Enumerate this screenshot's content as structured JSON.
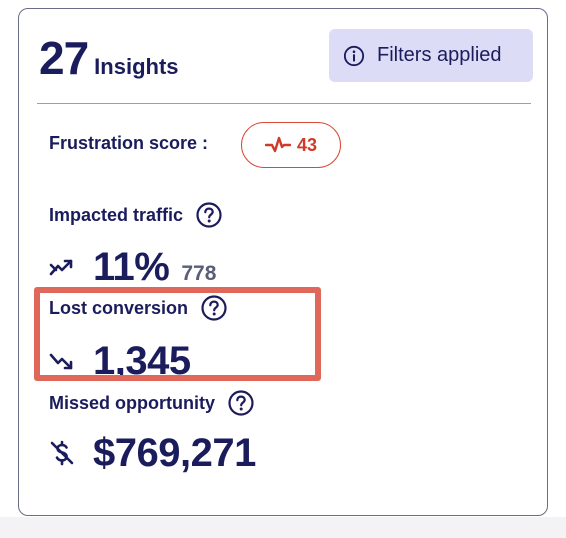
{
  "header": {
    "count": "27",
    "count_label": "Insights"
  },
  "filters": {
    "label": "Filters applied",
    "icon": "info-icon"
  },
  "frustration": {
    "label": "Frustration score :",
    "score": "43",
    "icon": "pulse-icon",
    "color": "#d03a28"
  },
  "impacted_traffic": {
    "label": "Impacted traffic",
    "value": "11%",
    "count": "778",
    "icon": "trend-up-icon"
  },
  "lost_conversion": {
    "label": "Lost conversion",
    "value": "1,345",
    "icon": "trend-down-icon"
  },
  "missed_opportunity": {
    "label": "Missed opportunity",
    "value": "$769,271",
    "icon": "no-dollar-icon"
  },
  "colors": {
    "text": "#1b1c5c",
    "filter_bg": "#dcdcf7",
    "highlight": "#e0685a"
  }
}
